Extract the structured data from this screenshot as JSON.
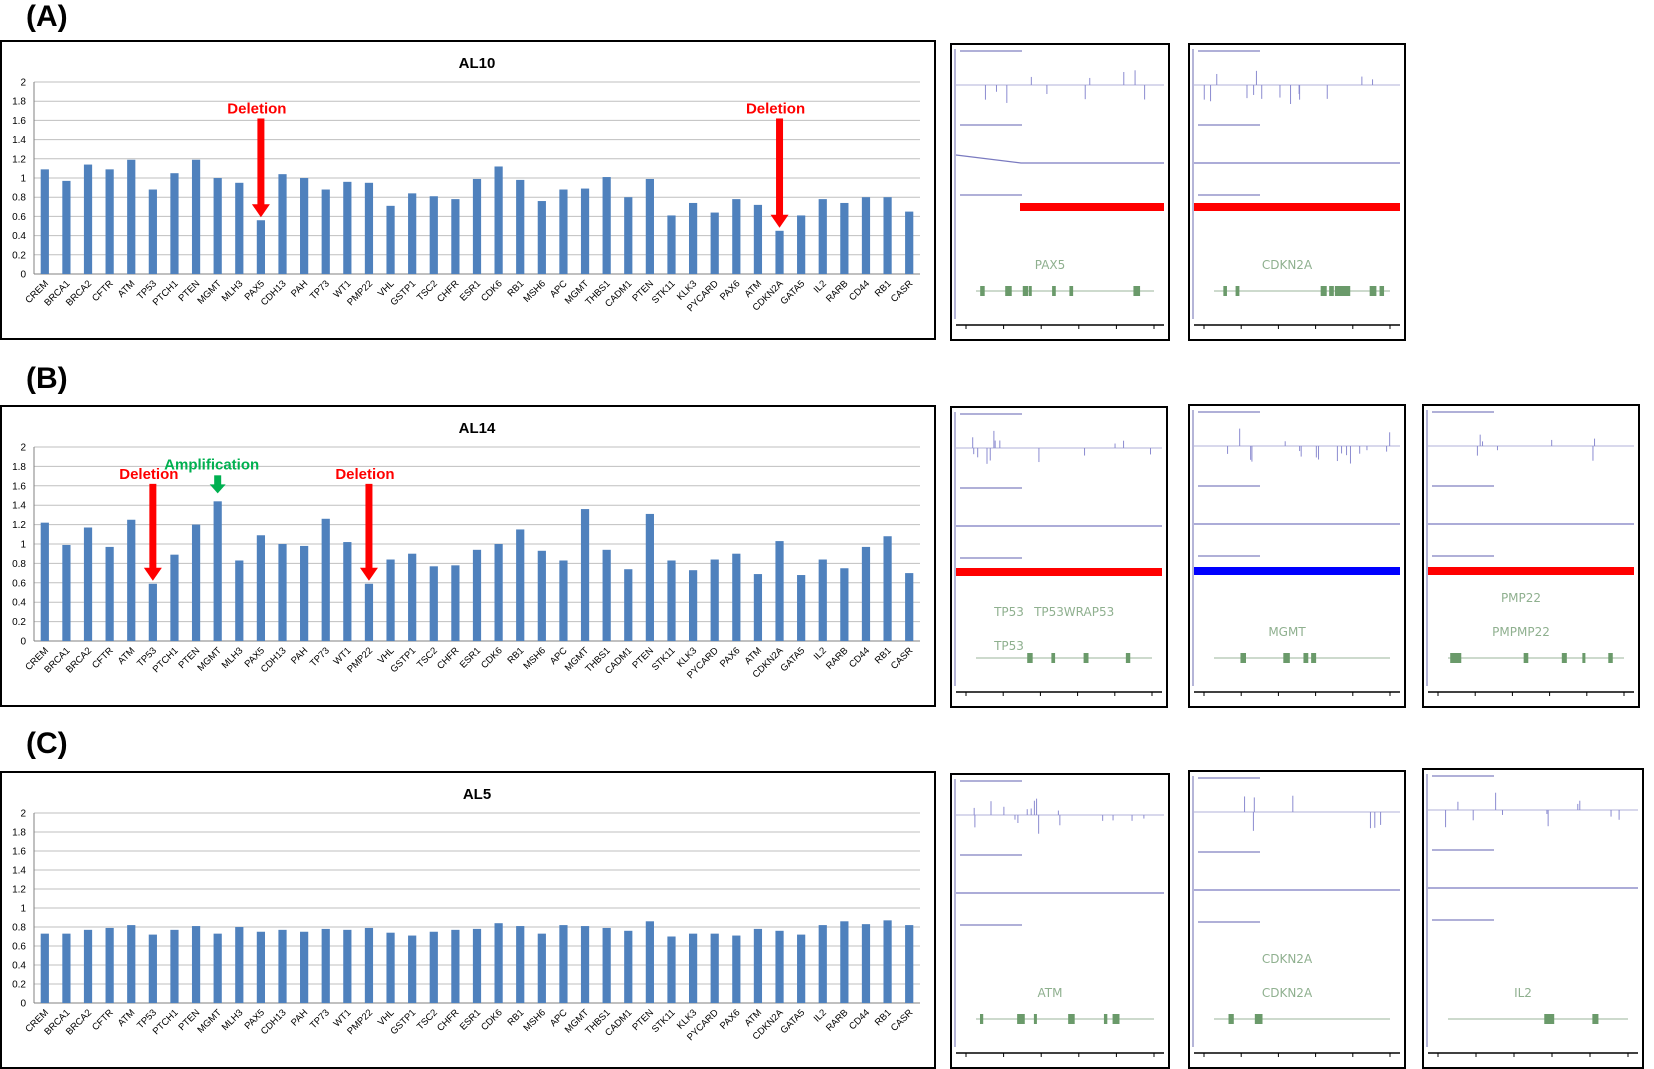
{
  "panels": [
    {
      "id": "A",
      "label": "(A)",
      "chart_data": {
        "type": "bar",
        "title": "AL10",
        "ylim": [
          0,
          2
        ],
        "yticks": [
          "0",
          "0.2",
          "0.4",
          "0.6",
          "0.8",
          "1",
          "1.2",
          "1.4",
          "1.6",
          "1.8",
          "2"
        ],
        "grid": true,
        "categories": [
          "CREM",
          "BRCA1",
          "BRCA2",
          "CFTR",
          "ATM",
          "TP53",
          "PTCH1",
          "PTEN",
          "MGMT",
          "MLH3",
          "PAX5",
          "CDH13",
          "PAH",
          "TP73",
          "WT1",
          "PMP22",
          "VHL",
          "GSTP1",
          "TSC2",
          "CHFR",
          "ESR1",
          "CDK6",
          "RB1",
          "MSH6",
          "APC",
          "MGMT",
          "THBS1",
          "CADM1",
          "PTEN",
          "STK11",
          "KLK3",
          "PYCARD",
          "PAX6",
          "ATM",
          "CDKN2A",
          "GATA5",
          "IL2",
          "RARB",
          "CD44",
          "RB1",
          "CASR"
        ],
        "values": [
          1.09,
          0.97,
          1.14,
          1.09,
          1.19,
          0.88,
          1.05,
          1.19,
          1.0,
          0.95,
          0.56,
          1.04,
          1.0,
          0.88,
          0.96,
          0.95,
          0.71,
          0.84,
          0.81,
          0.78,
          0.99,
          1.12,
          0.98,
          0.76,
          0.88,
          0.89,
          1.01,
          0.8,
          0.99,
          0.61,
          0.74,
          0.64,
          0.78,
          0.72,
          0.45,
          0.61,
          0.78,
          0.74,
          0.8,
          0.8,
          0.65
        ],
        "annotations": [
          {
            "text": "Deletion",
            "category_index": 10,
            "color": "#ff0000"
          },
          {
            "text": "Deletion",
            "category_index": 34,
            "color": "#ff0000"
          }
        ]
      },
      "igv": [
        {
          "gene_lines": [
            "PAX5"
          ],
          "bar_color": "#ff0000"
        },
        {
          "gene_lines": [
            "CDKN2A"
          ],
          "bar_color": "#ff0000"
        }
      ]
    },
    {
      "id": "B",
      "label": "(B)",
      "chart_data": {
        "type": "bar",
        "title": "AL14",
        "ylim": [
          0,
          2
        ],
        "yticks": [
          "0",
          "0.2",
          "0.4",
          "0.6",
          "0.8",
          "1",
          "1.2",
          "1.4",
          "1.6",
          "1.8",
          "2"
        ],
        "grid": true,
        "categories": [
          "CREM",
          "BRCA1",
          "BRCA2",
          "CFTR",
          "ATM",
          "TP53",
          "PTCH1",
          "PTEN",
          "MGMT",
          "MLH3",
          "PAX5",
          "CDH13",
          "PAH",
          "TP73",
          "WT1",
          "PMP22",
          "VHL",
          "GSTP1",
          "TSC2",
          "CHFR",
          "ESR1",
          "CDK6",
          "RB1",
          "MSH6",
          "APC",
          "MGMT",
          "THBS1",
          "CADM1",
          "PTEN",
          "STK11",
          "KLK3",
          "PYCARD",
          "PAX6",
          "ATM",
          "CDKN2A",
          "GATA5",
          "IL2",
          "RARB",
          "CD44",
          "RB1",
          "CASR"
        ],
        "values": [
          1.22,
          0.99,
          1.17,
          0.97,
          1.25,
          0.59,
          0.89,
          1.2,
          1.44,
          0.83,
          1.09,
          1.0,
          0.98,
          1.26,
          1.02,
          0.59,
          0.84,
          0.9,
          0.77,
          0.78,
          0.94,
          1.0,
          1.15,
          0.93,
          0.83,
          1.36,
          0.94,
          0.74,
          1.31,
          0.83,
          0.73,
          0.84,
          0.9,
          0.69,
          1.03,
          0.68,
          0.84,
          0.75,
          0.97,
          1.08,
          0.7
        ],
        "annotations": [
          {
            "text": "Deletion",
            "category_index": 5,
            "color": "#ff0000"
          },
          {
            "text": "Amplification",
            "category_index": 8,
            "color": "#00b050"
          },
          {
            "text": "Deletion",
            "category_index": 15,
            "color": "#ff0000"
          }
        ]
      },
      "igv": [
        {
          "gene_lines": [
            "TP53",
            "TP53",
            "WRAP53",
            "TP53"
          ],
          "bar_color": "#ff0000"
        },
        {
          "gene_lines": [
            "MGMT"
          ],
          "bar_color": "#0000ff"
        },
        {
          "gene_lines": [
            "PMPMP22",
            "PMP22"
          ],
          "bar_color": "#ff0000"
        }
      ]
    },
    {
      "id": "C",
      "label": "(C)",
      "chart_data": {
        "type": "bar",
        "title": "AL5",
        "ylim": [
          0,
          2
        ],
        "yticks": [
          "0",
          "0.2",
          "0.4",
          "0.6",
          "0.8",
          "1",
          "1.2",
          "1.4",
          "1.6",
          "1.8",
          "2"
        ],
        "grid": true,
        "categories": [
          "CREM",
          "BRCA1",
          "BRCA2",
          "CFTR",
          "ATM",
          "TP53",
          "PTCH1",
          "PTEN",
          "MGMT",
          "MLH3",
          "PAX5",
          "CDH13",
          "PAH",
          "TP73",
          "WT1",
          "PMP22",
          "VHL",
          "GSTP1",
          "TSC2",
          "CHFR",
          "ESR1",
          "CDK6",
          "RB1",
          "MSH6",
          "APC",
          "MGMT",
          "THBS1",
          "CADM1",
          "PTEN",
          "STK11",
          "KLK3",
          "PYCARD",
          "PAX6",
          "ATM",
          "CDKN2A",
          "GATA5",
          "IL2",
          "RARB",
          "CD44",
          "RB1",
          "CASR"
        ],
        "values": [
          0.73,
          0.73,
          0.77,
          0.79,
          0.82,
          0.72,
          0.77,
          0.81,
          0.73,
          0.8,
          0.75,
          0.77,
          0.75,
          0.78,
          0.77,
          0.79,
          0.74,
          0.71,
          0.75,
          0.77,
          0.78,
          0.84,
          0.81,
          0.73,
          0.82,
          0.81,
          0.79,
          0.76,
          0.86,
          0.7,
          0.73,
          0.73,
          0.71,
          0.78,
          0.76,
          0.72,
          0.82,
          0.86,
          0.83,
          0.87,
          0.82
        ],
        "annotations": []
      },
      "igv": [
        {
          "gene_lines": [
            "ATM"
          ],
          "bar_color": ""
        },
        {
          "gene_lines": [
            "CDKN2A",
            "CDKN2A"
          ],
          "bar_color": ""
        },
        {
          "gene_lines": [
            "IL2"
          ],
          "bar_color": ""
        }
      ]
    }
  ]
}
